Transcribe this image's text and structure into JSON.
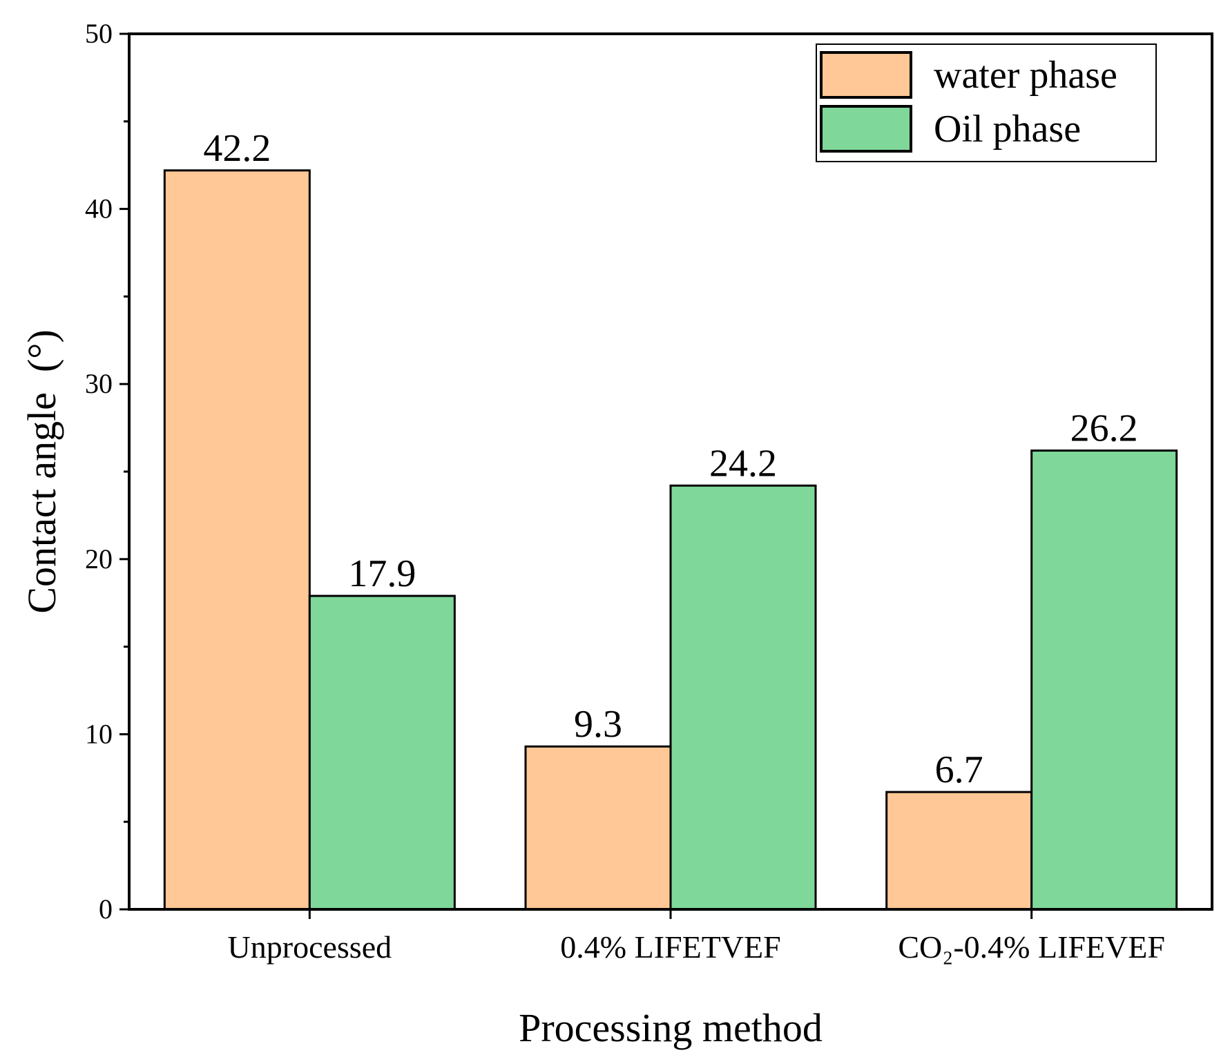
{
  "chart_data": {
    "type": "bar",
    "categories": [
      "Unprocessed",
      "0.4% LIFETVEF",
      "CO₂-0.4% LIFEVEF"
    ],
    "series": [
      {
        "name": "water phase",
        "values": [
          42.2,
          9.3,
          6.7
        ],
        "color": "#FFC896"
      },
      {
        "name": "Oil phase",
        "values": [
          17.9,
          24.2,
          26.2
        ],
        "color": "#7FD89A"
      }
    ],
    "data_labels": [
      [
        "42.2",
        "9.3",
        "6.7"
      ],
      [
        "17.9",
        "24.2",
        "26.2"
      ]
    ],
    "xlabel": "Processing method",
    "ylabel": "Contact angle  (°)",
    "ylim": [
      0,
      50
    ],
    "yticks": [
      "0",
      "10",
      "20",
      "30",
      "40",
      "50"
    ],
    "grid": false,
    "legend_position": "top-right"
  }
}
